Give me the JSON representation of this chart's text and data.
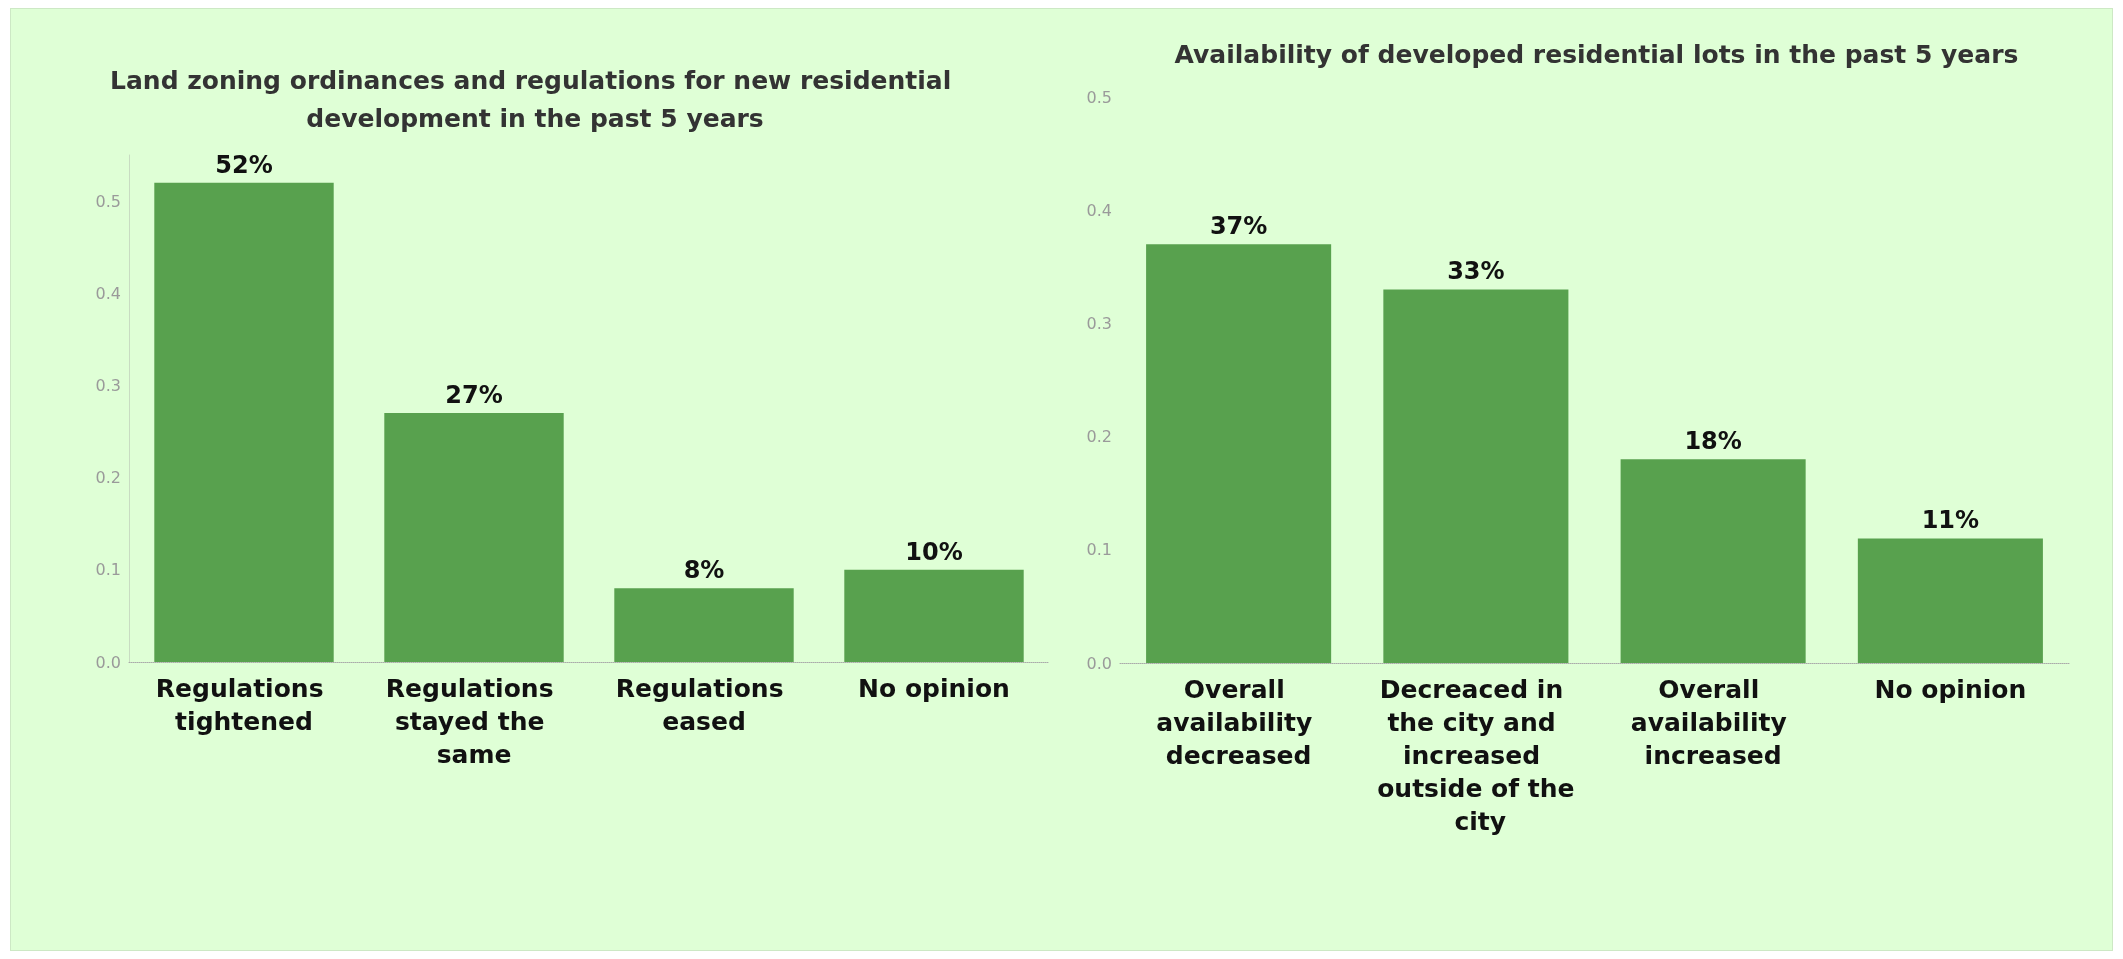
{
  "chart_data": [
    {
      "type": "bar",
      "title": "Land zoning ordinances and regulations for new residential development in the past 5 years",
      "categories": [
        "Regulations tightened",
        "Regulations stayed the same",
        "Regulations eased",
        "No opinion"
      ],
      "values": [
        0.52,
        0.27,
        0.08,
        0.1
      ],
      "value_labels": [
        "52%",
        "27%",
        "8%",
        "10%"
      ],
      "color": "#58a14e",
      "ylim": [
        0,
        0.55
      ],
      "yticks": [
        {
          "value": 0,
          "label": "0.0"
        },
        0.1,
        0.2,
        0.3,
        0.4,
        0.5
      ],
      "grid": false
    },
    {
      "type": "bar",
      "title": "Availability of developed residential lots in the past 5 years",
      "categories": [
        "Overall availability decreased",
        "Decreaced in the city and increased outside of the city",
        "Overall availability increased",
        "No opinion"
      ],
      "values": [
        0.37,
        0.33,
        0.18,
        0.11
      ],
      "value_labels": [
        "37%",
        "33%",
        "18%",
        "11%"
      ],
      "color": "#58a14e",
      "ylim": [
        0,
        0.5
      ],
      "yticks": [
        {
          "value": 0,
          "label": "0.0"
        },
        0.1,
        0.2,
        0.3,
        0.4,
        0.5
      ],
      "grid": false
    }
  ]
}
